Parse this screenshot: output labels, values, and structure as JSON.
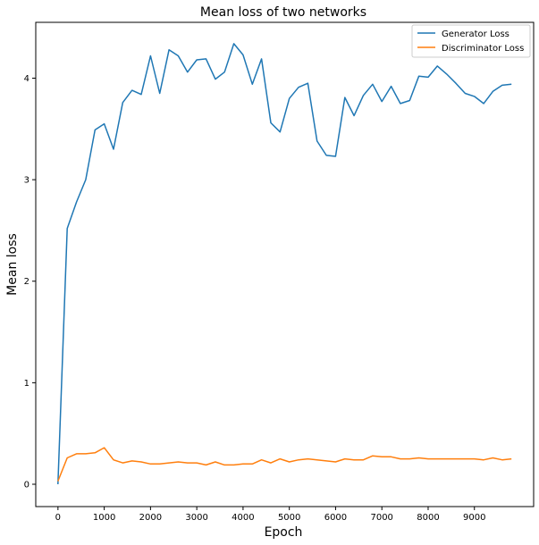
{
  "chart_data": {
    "type": "line",
    "title": "Mean loss of two networks",
    "xlabel": "Epoch",
    "ylabel": "Mean loss",
    "xlim": [
      -480,
      10280
    ],
    "ylim": [
      -0.22,
      4.55
    ],
    "xticks": [
      0,
      1000,
      2000,
      3000,
      4000,
      5000,
      6000,
      7000,
      8000,
      9000
    ],
    "xtick_labels": [
      "0",
      "1000",
      "2000",
      "3000",
      "4000",
      "5000",
      "6000",
      "7000",
      "8000",
      "9000"
    ],
    "yticks": [
      0,
      1,
      2,
      3,
      4
    ],
    "ytick_labels": [
      "0",
      "1",
      "2",
      "3",
      "4"
    ],
    "grid": false,
    "legend_position": "top-right",
    "x": [
      0,
      200,
      400,
      600,
      800,
      1000,
      1200,
      1400,
      1600,
      1800,
      2000,
      2200,
      2400,
      2600,
      2800,
      3000,
      3200,
      3400,
      3600,
      3800,
      4000,
      4200,
      4400,
      4600,
      4800,
      5000,
      5200,
      5400,
      5600,
      5800,
      6000,
      6200,
      6400,
      6600,
      6800,
      7000,
      7200,
      7400,
      7600,
      7800,
      8000,
      8200,
      8400,
      8600,
      8800,
      9000,
      9200,
      9400,
      9600,
      9800
    ],
    "series": [
      {
        "name": "Generator Loss",
        "color": "#1f77b4",
        "values": [
          0.0,
          2.52,
          2.78,
          3.0,
          3.49,
          3.55,
          3.3,
          3.76,
          3.88,
          3.84,
          4.22,
          3.85,
          4.28,
          4.22,
          4.06,
          4.18,
          4.19,
          3.99,
          4.06,
          4.34,
          4.23,
          3.94,
          4.19,
          3.56,
          3.47,
          3.8,
          3.91,
          3.95,
          3.38,
          3.24,
          3.23,
          3.81,
          3.63,
          3.83,
          3.94,
          3.77,
          3.92,
          3.75,
          3.78,
          4.02,
          4.01,
          4.12,
          4.04,
          3.95,
          3.85,
          3.82,
          3.75,
          3.87,
          3.93,
          3.94
        ]
      },
      {
        "name": "Discriminator Loss",
        "color": "#ff7f0e",
        "values": [
          0.03,
          0.26,
          0.3,
          0.3,
          0.31,
          0.36,
          0.24,
          0.21,
          0.23,
          0.22,
          0.2,
          0.2,
          0.21,
          0.22,
          0.21,
          0.21,
          0.19,
          0.22,
          0.19,
          0.19,
          0.2,
          0.2,
          0.24,
          0.21,
          0.25,
          0.22,
          0.24,
          0.25,
          0.24,
          0.23,
          0.22,
          0.25,
          0.24,
          0.24,
          0.28,
          0.27,
          0.27,
          0.25,
          0.25,
          0.26,
          0.25,
          0.25,
          0.25,
          0.25,
          0.25,
          0.25,
          0.24,
          0.26,
          0.24,
          0.25
        ]
      }
    ]
  }
}
